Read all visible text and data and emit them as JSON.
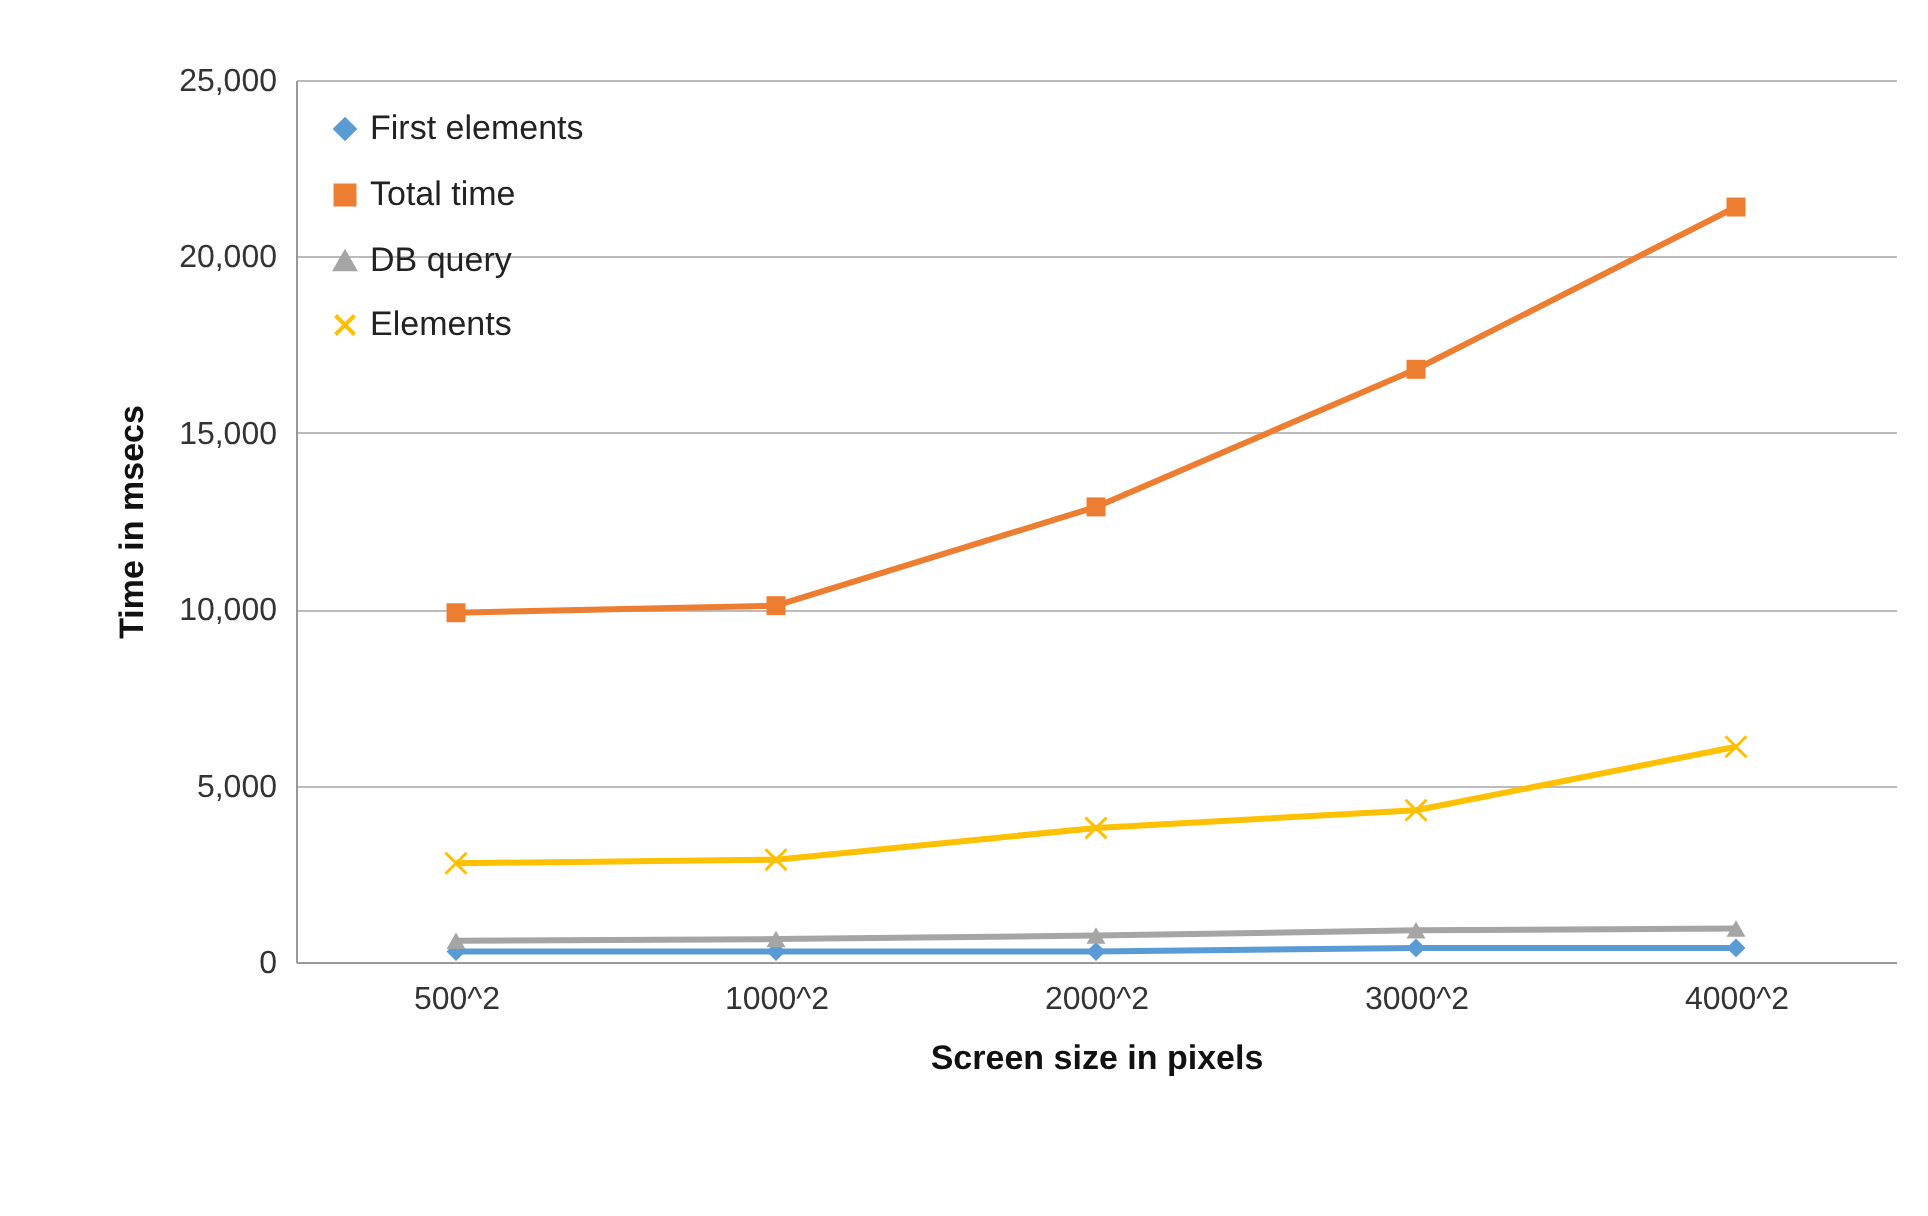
{
  "chart_data": {
    "type": "line",
    "xlabel": "Screen size in pixels",
    "ylabel": "Time in msecs",
    "categories": [
      "500^2",
      "1000^2",
      "2000^2",
      "3000^2",
      "4000^2"
    ],
    "series": [
      {
        "name": "First elements",
        "color": "#5b9bd5",
        "marker": "diamond",
        "values": [
          300,
          300,
          300,
          400,
          400
        ]
      },
      {
        "name": "Total time",
        "color": "#ed7d31",
        "marker": "square",
        "values": [
          9900,
          10100,
          12900,
          16800,
          21400
        ]
      },
      {
        "name": "DB query",
        "color": "#a5a5a5",
        "marker": "triangle",
        "values": [
          600,
          650,
          750,
          900,
          950
        ]
      },
      {
        "name": "Elements",
        "color": "#ffc000",
        "marker": "cross",
        "values": [
          2800,
          2900,
          3800,
          4300,
          6100
        ]
      }
    ],
    "ylim": [
      0,
      25000
    ],
    "yticks": [
      {
        "value": 0,
        "label": "0"
      },
      {
        "value": 5000,
        "label": "5,000"
      },
      {
        "value": 10000,
        "label": "10,000"
      },
      {
        "value": 15000,
        "label": "15,000"
      },
      {
        "value": 20000,
        "label": "20,000"
      },
      {
        "value": 25000,
        "label": "25,000"
      }
    ],
    "grid": "y",
    "legend": "top left"
  }
}
